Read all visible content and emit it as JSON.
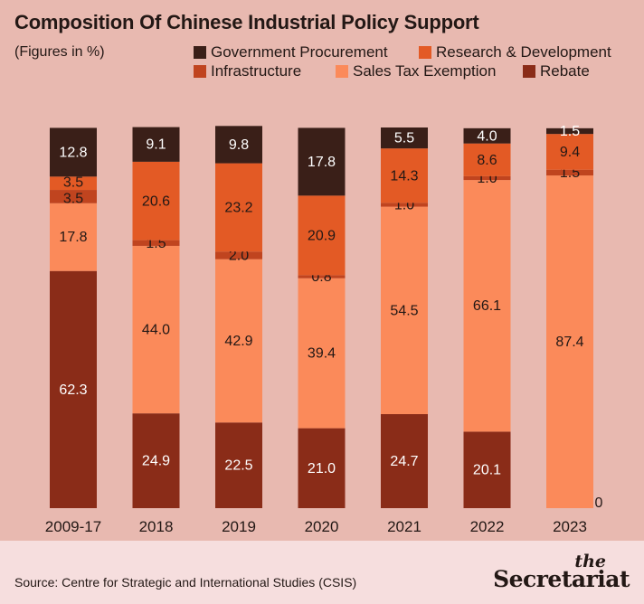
{
  "header": {
    "title": "Composition Of Chinese Industrial Policy Support",
    "subtitle": "(Figures in %)"
  },
  "legend": [
    {
      "label": "Government Procurement",
      "color": "#3a1f18"
    },
    {
      "label": "Research & Development",
      "color": "#e35a25"
    },
    {
      "label": "Infrastructure",
      "color": "#c0441f"
    },
    {
      "label": "Sales Tax Exemption",
      "color": "#fb8a5a"
    },
    {
      "label": "Rebate",
      "color": "#8a2c18"
    }
  ],
  "footer": {
    "source": "Source: Centre for Strategic and International Studies (CSIS)",
    "brand_small": "the",
    "brand_big": "Secretariat"
  },
  "chart_data": {
    "type": "bar",
    "stacked": true,
    "categories": [
      "2009-17",
      "2018",
      "2019",
      "2020",
      "2021",
      "2022",
      "2023"
    ],
    "series": [
      {
        "name": "Rebate",
        "color": "#8a2c18",
        "values": [
          62.3,
          24.9,
          22.5,
          21.0,
          24.7,
          20.1,
          0
        ]
      },
      {
        "name": "Sales Tax Exemption",
        "color": "#fb8a5a",
        "values": [
          17.8,
          44.0,
          42.9,
          39.4,
          54.5,
          66.1,
          87.4
        ]
      },
      {
        "name": "Infrastructure",
        "color": "#c0441f",
        "values": [
          3.5,
          1.5,
          2.0,
          0.8,
          1.0,
          1.0,
          1.5
        ]
      },
      {
        "name": "Research & Development",
        "color": "#e35a25",
        "values": [
          3.5,
          20.6,
          23.2,
          20.9,
          14.3,
          8.6,
          9.4
        ]
      },
      {
        "name": "Government Procurement",
        "color": "#3a1f18",
        "values": [
          12.8,
          9.1,
          9.8,
          17.8,
          5.5,
          4.0,
          1.5
        ]
      }
    ],
    "data_labels": [
      [
        "62.3",
        "17.8",
        "3.5",
        "3.5",
        "12.8"
      ],
      [
        "24.9",
        "44.0",
        "1.5",
        "20.6",
        "9.1"
      ],
      [
        "22.5",
        "42.9",
        "2.0",
        "23.2",
        "9.8"
      ],
      [
        "21.0",
        "39.4",
        "0.8",
        "20.9",
        "17.8"
      ],
      [
        "24.7",
        "54.5",
        "1.0",
        "14.3",
        "5.5"
      ],
      [
        "20.1",
        "66.1",
        "1.0",
        "8.6",
        "4.0"
      ],
      [
        "0",
        "87.4",
        "1.5",
        "9.4",
        "1.5"
      ]
    ],
    "ylim": [
      0,
      100
    ],
    "grid": false
  }
}
